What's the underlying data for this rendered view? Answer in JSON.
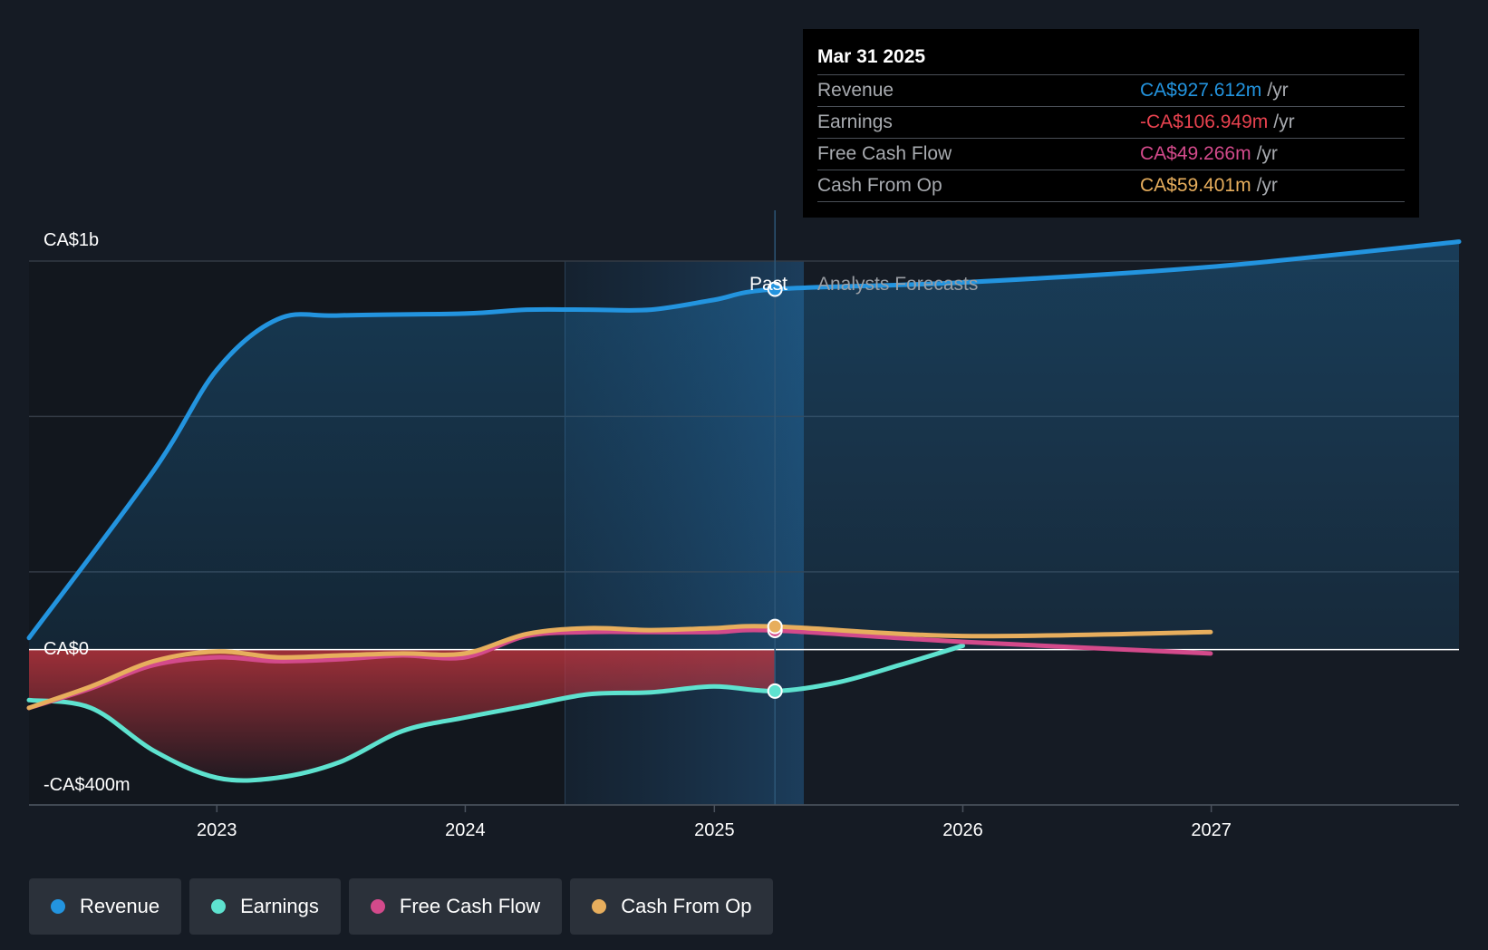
{
  "chart_data": {
    "type": "line",
    "currency_prefix": "CA$",
    "y_tick_labels": [
      "CA$1b",
      "CA$0",
      "-CA$400m"
    ],
    "x_tick_labels": [
      "2023",
      "2024",
      "2025",
      "2026",
      "2027"
    ],
    "ylim": [
      -400,
      1000
    ],
    "y_unit": "CA$ millions",
    "xlim": [
      "2022-03-31",
      "2027-12-31"
    ],
    "grid": true,
    "region_labels": {
      "past": "Past",
      "forecast": "Analysts Forecasts"
    },
    "divider_date": "2025-03-31",
    "series": [
      {
        "name": "Revenue",
        "color": "#2394df",
        "points": [
          [
            "2022-03-31",
            30
          ],
          [
            "2022-09-30",
            460
          ],
          [
            "2023-01-01",
            720
          ],
          [
            "2023-03-31",
            850
          ],
          [
            "2023-06-30",
            860
          ],
          [
            "2023-12-31",
            865
          ],
          [
            "2024-03-31",
            875
          ],
          [
            "2024-06-30",
            875
          ],
          [
            "2024-09-30",
            875
          ],
          [
            "2024-12-31",
            900
          ],
          [
            "2025-03-31",
            927.612
          ],
          [
            "2025-12-31",
            945
          ],
          [
            "2026-12-31",
            985
          ],
          [
            "2027-12-31",
            1050
          ]
        ]
      },
      {
        "name": "Earnings",
        "color": "#5ee2cf",
        "points": [
          [
            "2022-03-31",
            -130
          ],
          [
            "2022-06-30",
            -150
          ],
          [
            "2022-09-30",
            -260
          ],
          [
            "2023-01-01",
            -330
          ],
          [
            "2023-03-31",
            -330
          ],
          [
            "2023-06-30",
            -290
          ],
          [
            "2023-09-30",
            -210
          ],
          [
            "2023-12-31",
            -175
          ],
          [
            "2024-03-31",
            -145
          ],
          [
            "2024-06-30",
            -115
          ],
          [
            "2024-09-30",
            -110
          ],
          [
            "2024-12-31",
            -95
          ],
          [
            "2025-03-31",
            -106.949
          ],
          [
            "2025-06-30",
            -85
          ],
          [
            "2025-09-30",
            -40
          ],
          [
            "2026-01-01",
            10
          ]
        ]
      },
      {
        "name": "Free Cash Flow",
        "color": "#d34a8b",
        "points": [
          [
            "2022-03-31",
            -150
          ],
          [
            "2022-06-30",
            -100
          ],
          [
            "2022-09-30",
            -40
          ],
          [
            "2023-01-01",
            -20
          ],
          [
            "2023-03-31",
            -30
          ],
          [
            "2023-06-30",
            -25
          ],
          [
            "2023-09-30",
            -15
          ],
          [
            "2023-12-31",
            -20
          ],
          [
            "2024-03-31",
            35
          ],
          [
            "2024-06-30",
            45
          ],
          [
            "2024-09-30",
            45
          ],
          [
            "2024-12-31",
            45
          ],
          [
            "2025-03-31",
            49.266
          ],
          [
            "2025-12-31",
            20
          ],
          [
            "2026-12-31",
            -10
          ]
        ]
      },
      {
        "name": "Cash From Op",
        "color": "#e7ae5d",
        "points": [
          [
            "2022-03-31",
            -150
          ],
          [
            "2022-06-30",
            -95
          ],
          [
            "2022-09-30",
            -30
          ],
          [
            "2023-01-01",
            -5
          ],
          [
            "2023-03-31",
            -20
          ],
          [
            "2023-06-30",
            -15
          ],
          [
            "2023-09-30",
            -10
          ],
          [
            "2023-12-31",
            -10
          ],
          [
            "2024-03-31",
            40
          ],
          [
            "2024-06-30",
            55
          ],
          [
            "2024-09-30",
            50
          ],
          [
            "2024-12-31",
            55
          ],
          [
            "2025-03-31",
            59.401
          ],
          [
            "2025-12-31",
            35
          ],
          [
            "2026-12-31",
            45
          ]
        ]
      }
    ]
  },
  "tooltip": {
    "date": "Mar 31 2025",
    "rows": [
      {
        "label": "Revenue",
        "value": "CA$927.612m",
        "unit": "/yr",
        "color": "#2394df"
      },
      {
        "label": "Earnings",
        "value": "-CA$106.949m",
        "unit": "/yr",
        "color": "#e8424f"
      },
      {
        "label": "Free Cash Flow",
        "value": "CA$49.266m",
        "unit": "/yr",
        "color": "#d34a8b"
      },
      {
        "label": "Cash From Op",
        "value": "CA$59.401m",
        "unit": "/yr",
        "color": "#e7ae5d"
      }
    ]
  },
  "legend": [
    {
      "label": "Revenue",
      "color": "#2394df"
    },
    {
      "label": "Earnings",
      "color": "#5ee2cf"
    },
    {
      "label": "Free Cash Flow",
      "color": "#d34a8b"
    },
    {
      "label": "Cash From Op",
      "color": "#e7ae5d"
    }
  ]
}
